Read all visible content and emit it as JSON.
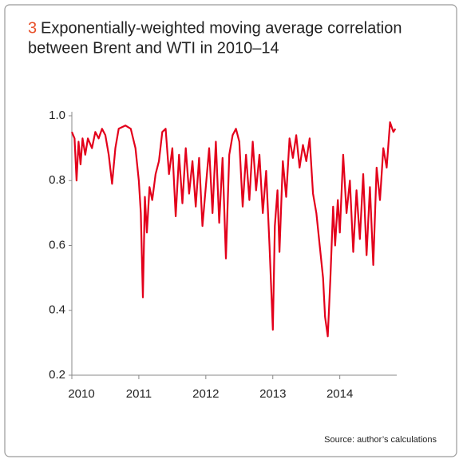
{
  "chart_data": {
    "type": "line",
    "number": "3",
    "title": [
      "Exponentially-weighted moving average correlation",
      "between Brent and WTI in 2010–14"
    ],
    "source": "Source: author’s calculations",
    "x": [
      2010.0,
      2010.04,
      2010.07,
      2010.1,
      2010.13,
      2010.16,
      2010.2,
      2010.24,
      2010.3,
      2010.35,
      2010.4,
      2010.45,
      2010.5,
      2010.55,
      2010.6,
      2010.65,
      2010.7,
      2010.8,
      2010.88,
      2010.95,
      2011.0,
      2011.03,
      2011.06,
      2011.09,
      2011.12,
      2011.16,
      2011.2,
      2011.25,
      2011.3,
      2011.35,
      2011.4,
      2011.45,
      2011.5,
      2011.55,
      2011.6,
      2011.65,
      2011.7,
      2011.75,
      2011.8,
      2011.85,
      2011.9,
      2011.95,
      2012.0,
      2012.05,
      2012.1,
      2012.15,
      2012.2,
      2012.25,
      2012.3,
      2012.35,
      2012.4,
      2012.45,
      2012.5,
      2012.55,
      2012.6,
      2012.65,
      2012.7,
      2012.75,
      2012.8,
      2012.85,
      2012.9,
      2012.95,
      2013.0,
      2013.03,
      2013.07,
      2013.1,
      2013.15,
      2013.2,
      2013.25,
      2013.3,
      2013.35,
      2013.4,
      2013.45,
      2013.5,
      2013.55,
      2013.6,
      2013.65,
      2013.7,
      2013.75,
      2013.78,
      2013.82,
      2013.86,
      2013.9,
      2013.93,
      2013.97,
      2014.0,
      2014.05,
      2014.1,
      2014.15,
      2014.2,
      2014.25,
      2014.3,
      2014.35,
      2014.4,
      2014.45,
      2014.5,
      2014.55,
      2014.6,
      2014.65,
      2014.7,
      2014.75,
      2014.8,
      2014.83
    ],
    "series": [
      {
        "name": "Correlation",
        "color": "#e3001b",
        "values": [
          0.95,
          0.93,
          0.8,
          0.92,
          0.85,
          0.93,
          0.88,
          0.93,
          0.9,
          0.95,
          0.93,
          0.96,
          0.94,
          0.88,
          0.79,
          0.9,
          0.96,
          0.97,
          0.96,
          0.9,
          0.8,
          0.7,
          0.44,
          0.75,
          0.64,
          0.78,
          0.74,
          0.82,
          0.86,
          0.95,
          0.96,
          0.82,
          0.9,
          0.69,
          0.88,
          0.73,
          0.9,
          0.76,
          0.86,
          0.72,
          0.87,
          0.66,
          0.78,
          0.9,
          0.7,
          0.92,
          0.67,
          0.87,
          0.56,
          0.88,
          0.94,
          0.96,
          0.92,
          0.72,
          0.88,
          0.74,
          0.92,
          0.77,
          0.88,
          0.7,
          0.83,
          0.6,
          0.34,
          0.66,
          0.77,
          0.58,
          0.86,
          0.75,
          0.93,
          0.87,
          0.94,
          0.84,
          0.91,
          0.86,
          0.93,
          0.76,
          0.7,
          0.6,
          0.5,
          0.38,
          0.32,
          0.5,
          0.72,
          0.6,
          0.74,
          0.64,
          0.88,
          0.7,
          0.8,
          0.58,
          0.77,
          0.62,
          0.82,
          0.57,
          0.78,
          0.54,
          0.84,
          0.74,
          0.9,
          0.84,
          0.98,
          0.95,
          0.96
        ]
      }
    ],
    "xlim": [
      2010,
      2014.85
    ],
    "xticks": [
      2010,
      2011,
      2012,
      2013,
      2014
    ],
    "ylim": [
      0.2,
      1.0
    ],
    "yticks": [
      {
        "value": 0.2,
        "label": "0.2"
      },
      {
        "value": 0.4,
        "label": "0.4"
      },
      {
        "value": 0.6,
        "label": "0.6"
      },
      {
        "value": 0.8,
        "label": "0.8"
      },
      {
        "value": 1.0,
        "label": "1.0"
      }
    ]
  }
}
